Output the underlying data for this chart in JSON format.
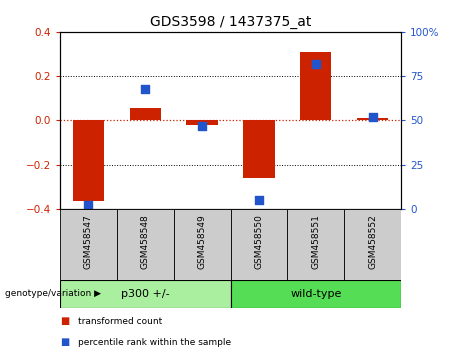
{
  "title": "GDS3598 / 1437375_at",
  "categories": [
    "GSM458547",
    "GSM458548",
    "GSM458549",
    "GSM458550",
    "GSM458551",
    "GSM458552"
  ],
  "red_values": [
    -0.365,
    0.055,
    -0.02,
    -0.26,
    0.31,
    0.01
  ],
  "blue_values_pct": [
    2,
    68,
    47,
    5,
    82,
    52
  ],
  "ylim_left": [
    -0.4,
    0.4
  ],
  "ylim_right": [
    0,
    100
  ],
  "yticks_left": [
    -0.4,
    -0.2,
    0.0,
    0.2,
    0.4
  ],
  "yticks_right": [
    0,
    25,
    50,
    75,
    100
  ],
  "yticklabels_right": [
    "0",
    "25",
    "50",
    "75",
    "100%"
  ],
  "red_color": "#cc2200",
  "blue_color": "#2255cc",
  "group1_label": "p300 +/-",
  "group2_label": "wild-type",
  "group1_color": "#aaeea0",
  "group2_color": "#55dd55",
  "group1_indices": [
    0,
    1,
    2
  ],
  "group2_indices": [
    3,
    4,
    5
  ],
  "legend_red_label": "transformed count",
  "legend_blue_label": "percentile rank within the sample",
  "bar_width": 0.55,
  "blue_marker_size": 28,
  "xlabel_bottom": "genotype/variation",
  "zero_line_color": "#cc2200",
  "background_color": "#ffffff",
  "tick_label_color_left": "#cc2200",
  "tick_label_color_right": "#2255cc",
  "tick_box_color": "#cccccc",
  "tick_label_fontsize": 7.5,
  "cat_label_fontsize": 6.5
}
